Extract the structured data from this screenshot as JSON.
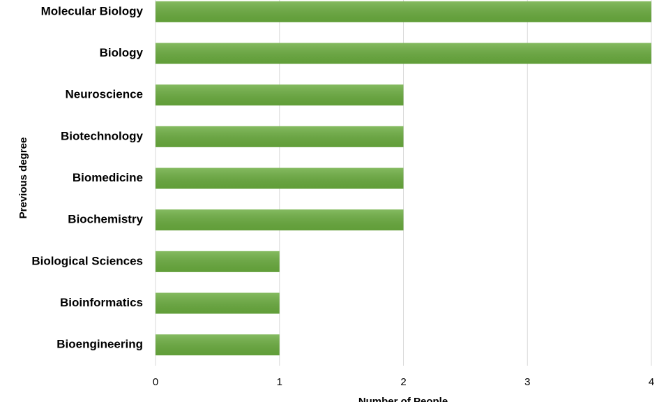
{
  "chart_data": {
    "type": "bar",
    "orientation": "horizontal",
    "categories": [
      "Molecular Biology",
      "Biology",
      "Neuroscience",
      "Biotechnology",
      "Biomedicine",
      "Biochemistry",
      "Biological Sciences",
      "Bioinformatics",
      "Bioengineering"
    ],
    "values": [
      4,
      4,
      2,
      2,
      2,
      2,
      1,
      1,
      1
    ],
    "color": "#6aac3e",
    "xlim": [
      0,
      4
    ],
    "xticks": [
      0,
      1,
      2,
      3,
      4
    ],
    "grid": true,
    "xlabel": "Number of People",
    "ylabel": "Previous degree"
  }
}
